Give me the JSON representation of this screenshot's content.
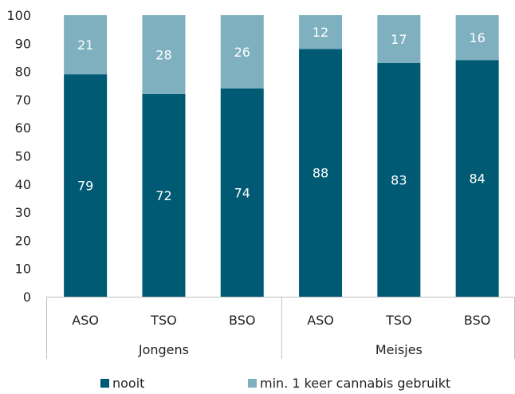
{
  "chart_data": {
    "type": "bar",
    "stacked": true,
    "groups": [
      {
        "label": "Jongens",
        "categories": [
          "ASO",
          "TSO",
          "BSO"
        ]
      },
      {
        "label": "Meisjes",
        "categories": [
          "ASO",
          "TSO",
          "BSO"
        ]
      }
    ],
    "series": [
      {
        "name": "nooit",
        "values": [
          79,
          72,
          74,
          88,
          83,
          84
        ],
        "color": "#005a73"
      },
      {
        "name": "min. 1 keer cannabis gebruikt",
        "values": [
          21,
          28,
          26,
          12,
          17,
          16
        ],
        "color": "#7fb0c0"
      }
    ],
    "yticks": [
      "0",
      "10",
      "20",
      "30",
      "40",
      "50",
      "60",
      "70",
      "80",
      "90",
      "100"
    ],
    "ylim": [
      0,
      100
    ],
    "grid": false,
    "legend_position": "bottom"
  }
}
